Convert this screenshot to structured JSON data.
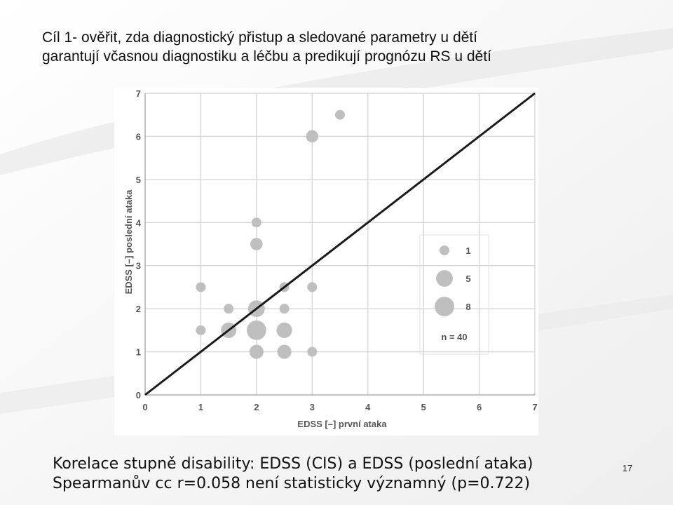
{
  "title": [
    "Cíl 1- ověřit, zda diagnostický přistup  a sledované parametry u dětí",
    "garantují včasnou diagnostiku a léčbu a predikují prognózu RS u dětí"
  ],
  "chart_data": {
    "type": "bubble",
    "x": [
      3.5,
      3,
      2,
      2,
      1,
      2.5,
      3,
      1.5,
      2,
      2.5,
      1,
      1.5,
      2,
      2.5,
      2,
      2.5,
      3
    ],
    "values": [
      6.5,
      6,
      4,
      3.5,
      2.5,
      2.5,
      2.5,
      2,
      2,
      2,
      1.5,
      1.5,
      1.5,
      1.5,
      1,
      1,
      1
    ],
    "sizes": [
      1,
      2,
      1,
      2,
      1,
      1,
      1,
      1,
      5,
      1,
      1,
      4,
      8,
      4,
      3,
      3,
      1
    ],
    "color": "#bfbfbf",
    "line_color": "#1a1a1a",
    "x_label": "EDSS [–] první ataka",
    "y_label": "EDSS [–] poslední ataka",
    "xlim": [
      0,
      7
    ],
    "ylim": [
      0,
      7
    ],
    "xticks": [
      0,
      1,
      2,
      3,
      4,
      5,
      6,
      7
    ],
    "yticks": [
      0,
      1,
      2,
      3,
      4,
      5,
      6,
      7
    ],
    "grid": true,
    "size_legend": [
      1,
      5,
      8
    ],
    "size_legend_note": "n = 40"
  },
  "caption": [
    "Korelace stupně disability: EDSS (CIS) a EDSS (poslední ataka)",
    "Spearmanův cc r=0.058 není statisticky významný (p=0.722)"
  ],
  "page_number": 17
}
